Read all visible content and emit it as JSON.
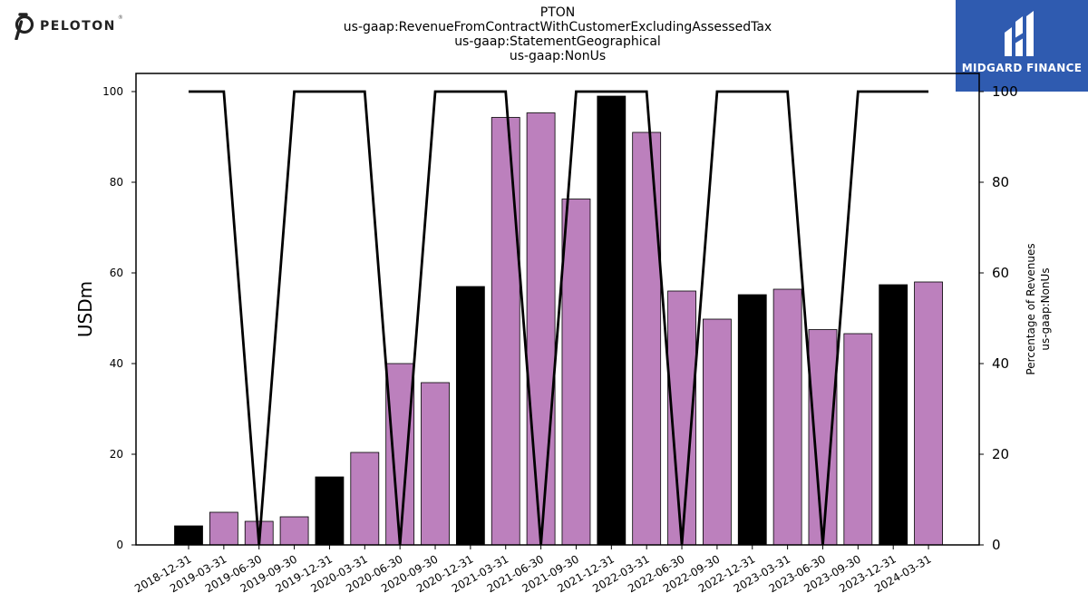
{
  "header": {
    "title_lines": [
      "PTON",
      "us-gaap:RevenueFromContractWithCustomerExcludingAssessedTax",
      "us-gaap:StatementGeographical",
      "us-gaap:NonUs"
    ]
  },
  "logos": {
    "left_text": "PELOTON",
    "left_mark": "®",
    "right_text": "MIDGARD FINANCE"
  },
  "colors": {
    "bar_quarter": "#bc80bd",
    "bar_year_end": "#000000",
    "line": "#000000",
    "brand_blue": "#2f5bb0"
  },
  "chart_data": {
    "type": "bar",
    "ylabel": "USDm",
    "y2label_lines": [
      "Percentage of Revenues",
      "us-gaap:NonUs"
    ],
    "ylim": [
      0,
      104
    ],
    "y2lim": [
      0,
      104
    ],
    "yticks": [
      0,
      20,
      40,
      60,
      80,
      100
    ],
    "y2ticks": [
      0,
      20,
      40,
      60,
      80,
      100
    ],
    "categories": [
      "2018-12-31",
      "2019-03-31",
      "2019-06-30",
      "2019-09-30",
      "2019-12-31",
      "2020-03-31",
      "2020-06-30",
      "2020-09-30",
      "2020-12-31",
      "2021-03-31",
      "2021-06-30",
      "2021-09-30",
      "2021-12-31",
      "2022-03-31",
      "2022-06-30",
      "2022-09-30",
      "2022-12-31",
      "2023-03-31",
      "2023-06-30",
      "2023-09-30",
      "2023-12-31",
      "2024-03-31"
    ],
    "series": [
      {
        "type": "bar",
        "values": [
          4.2,
          7.2,
          5.2,
          6.2,
          15,
          20.4,
          40,
          35.8,
          57,
          94.3,
          95.3,
          76.3,
          99,
          91,
          56,
          49.8,
          55.2,
          56.4,
          47.5,
          46.6,
          57.4,
          58
        ],
        "year_end": [
          true,
          false,
          false,
          false,
          true,
          false,
          false,
          false,
          true,
          false,
          false,
          false,
          true,
          false,
          false,
          false,
          true,
          false,
          false,
          false,
          true,
          false
        ]
      },
      {
        "type": "line",
        "axis": "right",
        "values": [
          100,
          100,
          0,
          100,
          100,
          100,
          0,
          100,
          100,
          100,
          0,
          100,
          100,
          100,
          0,
          100,
          100,
          100,
          0,
          100,
          100,
          100
        ]
      }
    ],
    "grid": false
  }
}
